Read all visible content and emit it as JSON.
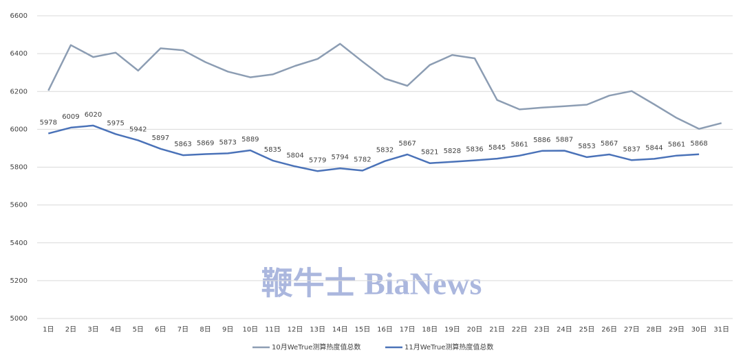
{
  "chart_data": {
    "type": "line",
    "categories": [
      "1日",
      "2日",
      "3日",
      "4日",
      "5日",
      "6日",
      "7日",
      "8日",
      "9日",
      "10日",
      "11日",
      "12日",
      "13日",
      "14日",
      "15日",
      "16日",
      "17日",
      "18日",
      "19日",
      "20日",
      "21日",
      "22日",
      "23日",
      "24日",
      "25日",
      "26日",
      "27日",
      "28日",
      "29日",
      "30日",
      "31日"
    ],
    "series": [
      {
        "name": "10月WeTrue测算热度值总数",
        "color": "#8c9db3",
        "values": [
          6205,
          6445,
          6382,
          6405,
          6310,
          6428,
          6418,
          6355,
          6305,
          6275,
          6290,
          6335,
          6372,
          6452,
          6358,
          6268,
          6230,
          6340,
          6393,
          6375,
          6155,
          6105,
          6115,
          6122,
          6130,
          6178,
          6202,
          6132,
          6060,
          6002,
          6033
        ]
      },
      {
        "name": "11月WeTrue测算热度值总数",
        "color": "#4a72b8",
        "data_labels": true,
        "values": [
          5978,
          6009,
          6020,
          5975,
          5942,
          5897,
          5863,
          5869,
          5873,
          5889,
          5835,
          5804,
          5779,
          5794,
          5782,
          5832,
          5867,
          5821,
          5828,
          5836,
          5845,
          5861,
          5886,
          5887,
          5853,
          5867,
          5837,
          5844,
          5861,
          5868,
          null
        ]
      }
    ],
    "ylim": [
      5000,
      6600
    ],
    "yticks": [
      5000,
      5200,
      5400,
      5600,
      5800,
      6000,
      6200,
      6400,
      6600
    ],
    "grid": true,
    "legend": "bottom",
    "watermark": "鞭牛士 BiaNews"
  }
}
